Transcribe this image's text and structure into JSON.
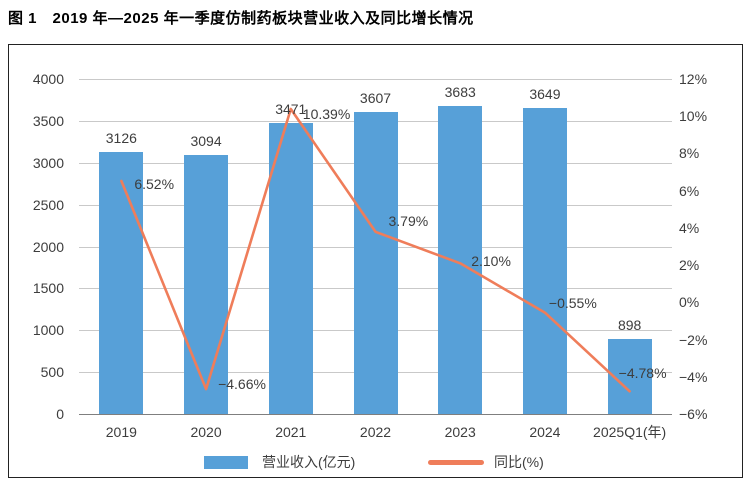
{
  "title": "图 1　2019 年—2025 年一季度仿制药板块营业收入及同比增长情况",
  "colors": {
    "bar": "#57a0d8",
    "line": "#ef7d5a",
    "gridline": "#c9c9c9",
    "axisline": "#7f7f7f",
    "text": "#3d3d3d"
  },
  "chart_data": {
    "type": "bar+line",
    "categories": [
      "2019",
      "2020",
      "2021",
      "2022",
      "2023",
      "2024",
      "2025Q1(年)"
    ],
    "series": [
      {
        "name": "营业收入(亿元)",
        "type": "bar",
        "axis": "left",
        "values": [
          3126,
          3094,
          3471,
          3607,
          3683,
          3649,
          898
        ],
        "labels": [
          "3126",
          "3094",
          "3471",
          "3607",
          "3683",
          "3649",
          "898"
        ],
        "color": "#57a0d8"
      },
      {
        "name": "同比(%)",
        "type": "line",
        "axis": "right",
        "values": [
          6.52,
          -4.66,
          10.39,
          3.79,
          2.1,
          -0.55,
          -4.78
        ],
        "labels": [
          "6.52%",
          "−4.66%",
          "10.39%",
          "3.79%",
          "2.10%",
          "−0.55%",
          "−4.78%"
        ],
        "color": "#ef7d5a"
      }
    ],
    "left_axis": {
      "min": 0,
      "max": 4000,
      "step": 500,
      "ticks": [
        "4000",
        "3500",
        "3000",
        "2500",
        "2000",
        "1500",
        "1000",
        "500",
        "0"
      ]
    },
    "right_axis": {
      "min": -6,
      "max": 12,
      "step": 2,
      "ticks": [
        "12%",
        "10%",
        "8%",
        "6%",
        "4%",
        "2%",
        "0%",
        "−2%",
        "−4%",
        "−6%"
      ]
    },
    "legend": [
      {
        "label": "营业收入(亿元)",
        "type": "bar"
      },
      {
        "label": "同比(%)",
        "type": "line"
      }
    ],
    "grid": "horizontal-only",
    "legend_position": "bottom-center"
  }
}
